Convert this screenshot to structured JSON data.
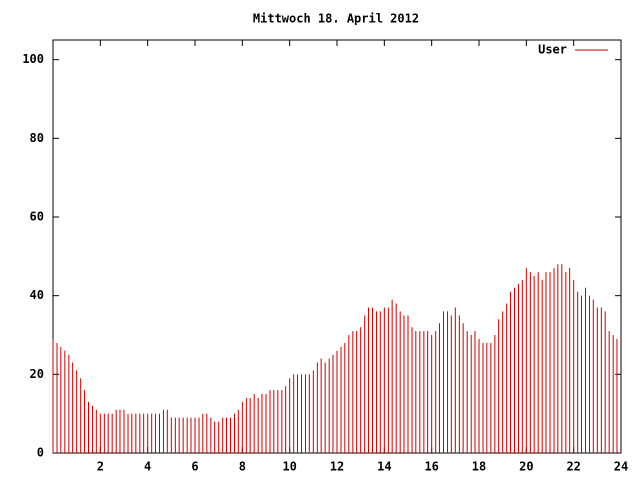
{
  "chart_data": {
    "type": "impulses",
    "title": "Mittwoch 18. April 2012",
    "series": [
      {
        "name": "User",
        "color": "#cc0000",
        "x": [
          0,
          0.17,
          0.33,
          0.5,
          0.67,
          0.83,
          1,
          1.17,
          1.33,
          1.5,
          1.67,
          1.83,
          2,
          2.17,
          2.33,
          2.5,
          2.67,
          2.83,
          3,
          3.17,
          3.33,
          3.5,
          3.67,
          3.83,
          4,
          4.17,
          4.33,
          4.5,
          4.67,
          4.83,
          5,
          5.17,
          5.33,
          5.5,
          5.67,
          5.83,
          6,
          6.17,
          6.33,
          6.5,
          6.67,
          6.83,
          7,
          7.17,
          7.33,
          7.5,
          7.67,
          7.83,
          8,
          8.17,
          8.33,
          8.5,
          8.67,
          8.83,
          9,
          9.17,
          9.33,
          9.5,
          9.67,
          9.83,
          10,
          10.17,
          10.33,
          10.5,
          10.67,
          10.83,
          11,
          11.17,
          11.33,
          11.5,
          11.67,
          11.83,
          12,
          12.17,
          12.33,
          12.5,
          12.67,
          12.83,
          13,
          13.17,
          13.33,
          13.5,
          13.67,
          13.83,
          14,
          14.17,
          14.33,
          14.5,
          14.67,
          14.83,
          15,
          15.17,
          15.33,
          15.5,
          15.67,
          15.83,
          16,
          16.17,
          16.33,
          16.5,
          16.67,
          16.83,
          17,
          17.17,
          17.33,
          17.5,
          17.67,
          17.83,
          18,
          18.17,
          18.33,
          18.5,
          18.67,
          18.83,
          19,
          19.17,
          19.33,
          19.5,
          19.67,
          19.83,
          20,
          20.17,
          20.33,
          20.5,
          20.67,
          20.83,
          21,
          21.17,
          21.33,
          21.5,
          21.67,
          21.83,
          22,
          22.17,
          22.33,
          22.5,
          22.67,
          22.83,
          23,
          23.17,
          23.33,
          23.5,
          23.67,
          23.83
        ],
        "values": [
          29,
          28,
          27,
          26,
          25,
          23,
          21,
          19,
          16,
          13,
          12,
          11,
          10,
          10,
          10,
          10,
          11,
          11,
          11,
          10,
          10,
          10,
          10,
          10,
          10,
          10,
          10,
          10,
          11,
          11,
          9,
          9,
          9,
          9,
          9,
          9,
          9,
          9,
          10,
          10,
          9,
          8,
          8,
          9,
          9,
          9,
          10,
          11,
          13,
          14,
          14,
          15,
          14,
          15,
          15,
          16,
          16,
          16,
          16,
          17,
          19,
          20,
          20,
          20,
          20,
          20,
          21,
          23,
          24,
          23,
          24,
          25,
          26,
          27,
          28,
          30,
          31,
          31,
          32,
          35,
          37,
          37,
          36,
          36,
          37,
          37,
          39,
          38,
          36,
          35,
          35,
          32,
          31,
          31,
          31,
          31,
          30,
          31,
          33,
          36,
          36,
          35,
          37,
          35,
          33,
          31,
          30,
          31,
          29,
          28,
          28,
          28,
          30,
          34,
          36,
          38,
          41,
          42,
          43,
          44,
          47,
          46,
          45,
          46,
          44,
          46,
          46,
          47,
          48,
          48,
          46,
          47,
          44,
          41,
          40,
          42,
          40,
          39,
          37,
          37,
          36,
          31,
          30,
          29
        ]
      }
    ],
    "xlim": [
      0,
      24
    ],
    "xticks": [
      2,
      4,
      6,
      8,
      10,
      12,
      14,
      16,
      18,
      20,
      22,
      24
    ],
    "ylim": [
      0,
      105
    ],
    "yticks": [
      0,
      20,
      40,
      60,
      80,
      100
    ]
  }
}
